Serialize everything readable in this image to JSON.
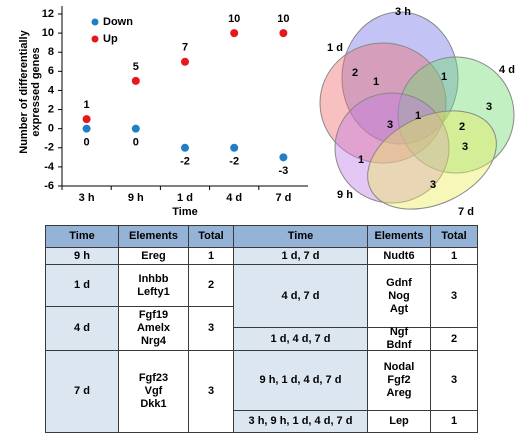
{
  "chart_data": [
    {
      "type": "scatter",
      "y_label": "Number of differentially expressed genes",
      "x_label": "Time",
      "categories": [
        "3 h",
        "9 h",
        "1 d",
        "4 d",
        "7 d"
      ],
      "series": [
        {
          "name": "Down",
          "color": "#1f7fc4",
          "values": [
            0,
            0,
            -2,
            -2,
            -3
          ]
        },
        {
          "name": "Up",
          "color": "#e8161d",
          "values": [
            1,
            5,
            7,
            10,
            10
          ]
        }
      ],
      "ylim": [
        -6,
        12
      ],
      "yticks": [
        -6,
        -4,
        -2,
        0,
        2,
        4,
        6,
        8,
        10,
        12
      ],
      "legend": "top-left"
    },
    {
      "type": "venn",
      "sets": [
        {
          "name": "3 h",
          "color": "#6f72e8"
        },
        {
          "name": "1 d",
          "color": "#ee6a6a"
        },
        {
          "name": "4 d",
          "color": "#6ddc6d"
        },
        {
          "name": "9 h",
          "color": "#c07ae6"
        },
        {
          "name": "7 d",
          "color": "#ecec5a"
        }
      ],
      "regions": [
        2,
        1,
        1,
        3,
        3,
        1,
        2,
        3,
        1,
        3
      ]
    }
  ],
  "table": {
    "left": {
      "header": [
        "Time",
        "Elements",
        "Total"
      ],
      "rows": [
        {
          "time": "9 h",
          "elements": [
            "Ereg"
          ],
          "total": 1
        },
        {
          "time": "1 d",
          "elements": [
            "Inhbb",
            "Lefty1"
          ],
          "total": 2
        },
        {
          "time": "4 d",
          "elements": [
            "Fgf19",
            "Amelx",
            "Nrg4"
          ],
          "total": 3
        },
        {
          "time": "7 d",
          "elements": [
            "Fgf23",
            "Vgf",
            "Dkk1"
          ],
          "total": 3
        }
      ]
    },
    "right": {
      "header": [
        "Time",
        "Elements",
        "Total"
      ],
      "rows": [
        {
          "time": "1 d, 7 d",
          "elements": [
            "Nudt6"
          ],
          "total": 1
        },
        {
          "time": "4 d, 7 d",
          "elements": [
            "Gdnf",
            "Nog",
            "Agt"
          ],
          "total": 3
        },
        {
          "time": "1 d, 4 d, 7 d",
          "elements": [
            "Ngf",
            "Bdnf"
          ],
          "total": 2
        },
        {
          "time": "9 h, 1 d, 4 d, 7 d",
          "elements": [
            "Nodal",
            "Fgf2",
            "Areg"
          ],
          "total": 3
        },
        {
          "time": "3 h, 9 h, 1 d, 4 d, 7 d",
          "elements": [
            "Lep"
          ],
          "total": 1
        }
      ]
    }
  }
}
